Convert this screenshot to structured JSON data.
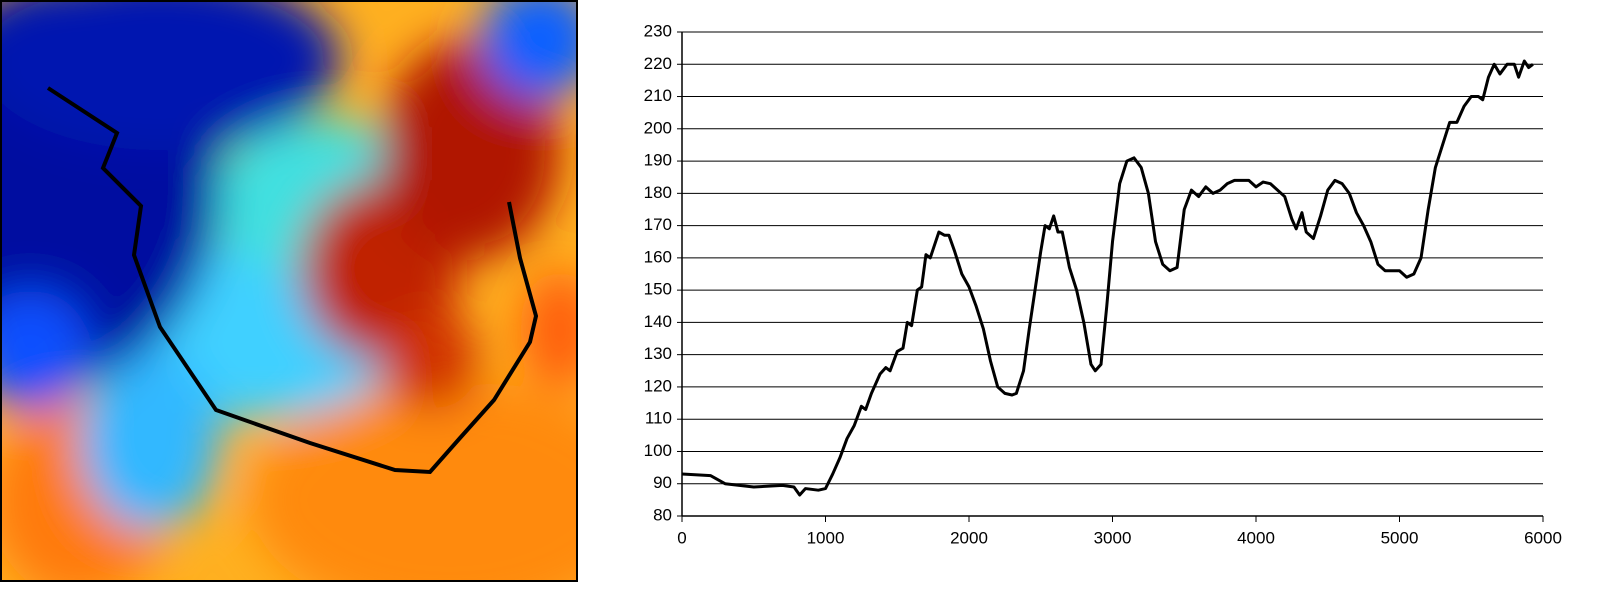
{
  "chart_data": {
    "type": "line",
    "color": "#000000",
    "grid": true,
    "xlim": [
      0,
      6000
    ],
    "xticks": [
      0,
      1000,
      2000,
      3000,
      4000,
      5000,
      6000
    ],
    "ylim": [
      80,
      230
    ],
    "yticks": [
      80,
      90,
      100,
      110,
      120,
      130,
      140,
      150,
      160,
      170,
      180,
      190,
      200,
      210,
      220,
      230
    ],
    "x": [
      0,
      200,
      300,
      500,
      700,
      780,
      820,
      860,
      950,
      1000,
      1050,
      1100,
      1150,
      1200,
      1250,
      1280,
      1320,
      1380,
      1420,
      1450,
      1500,
      1540,
      1570,
      1600,
      1640,
      1670,
      1700,
      1730,
      1760,
      1790,
      1830,
      1860,
      1900,
      1950,
      2000,
      2050,
      2100,
      2150,
      2200,
      2250,
      2300,
      2330,
      2380,
      2420,
      2460,
      2500,
      2530,
      2560,
      2590,
      2620,
      2650,
      2700,
      2750,
      2800,
      2850,
      2880,
      2920,
      2960,
      3000,
      3050,
      3100,
      3150,
      3200,
      3250,
      3300,
      3350,
      3400,
      3450,
      3500,
      3550,
      3600,
      3650,
      3700,
      3750,
      3800,
      3850,
      3950,
      4000,
      4050,
      4100,
      4200,
      4250,
      4280,
      4320,
      4350,
      4400,
      4450,
      4500,
      4550,
      4600,
      4650,
      4700,
      4750,
      4800,
      4850,
      4900,
      5000,
      5050,
      5100,
      5150,
      5200,
      5250,
      5300,
      5350,
      5400,
      5450,
      5500,
      5550,
      5580,
      5620,
      5660,
      5700,
      5750,
      5800,
      5830,
      5870,
      5900,
      5930
    ],
    "values": [
      93,
      92.5,
      90,
      89,
      89.5,
      89,
      86.5,
      88.5,
      88,
      88.5,
      93,
      98,
      104,
      108,
      114,
      113,
      118,
      124,
      126,
      125,
      131,
      132,
      140,
      139,
      150,
      151,
      161,
      160,
      164,
      168,
      167,
      167,
      162,
      155,
      151,
      145,
      138,
      128,
      120,
      118,
      117.5,
      118,
      125,
      138,
      150,
      162,
      170,
      169,
      173,
      168,
      168,
      157,
      150,
      140,
      127,
      125,
      127,
      145,
      165,
      183,
      190,
      191,
      188,
      180,
      165,
      158,
      156,
      157,
      175,
      181,
      179,
      182,
      180,
      181,
      183,
      184,
      184,
      182,
      183.5,
      183,
      179,
      172,
      169,
      174,
      168,
      166,
      173,
      181,
      184,
      183,
      180,
      174,
      170,
      165,
      158,
      156,
      156,
      154,
      155,
      160,
      175,
      188,
      195,
      202,
      202,
      207,
      210,
      210,
      209,
      216,
      220,
      217,
      220,
      220,
      216,
      221,
      219,
      220
    ]
  }
}
